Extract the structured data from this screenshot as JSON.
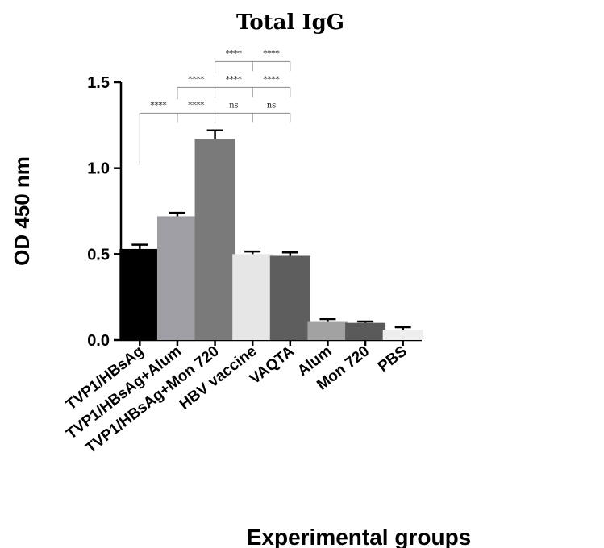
{
  "chart_data": {
    "type": "bar",
    "title": "Total IgG",
    "xlabel": "Experimental groups",
    "ylabel": "OD 450 nm",
    "ylim": [
      0,
      1.5
    ],
    "yticks": [
      "0.0",
      "0.5",
      "1.0",
      "1.5"
    ],
    "categories": [
      "TVP1/HBsAg",
      "TVP1/HBsAg+Alum",
      "TVP1/HBsAg+Mon 720",
      "HBV vaccine",
      "VAQTA",
      "Alum",
      "Mon 720",
      "PBS"
    ],
    "values": [
      0.53,
      0.72,
      1.17,
      0.5,
      0.49,
      0.11,
      0.1,
      0.06
    ],
    "errors": [
      0.025,
      0.02,
      0.05,
      0.015,
      0.02,
      0.012,
      0.008,
      0.015
    ],
    "bar_colors": [
      "#000000",
      "#9e9ea4",
      "#7a7a7a",
      "#e6e6e6",
      "#5e5e5e",
      "#a2a2a2",
      "#5a5a5a",
      "#eeeeee"
    ],
    "significance": [
      {
        "from": 0,
        "to": 4,
        "level": 1.32,
        "labels": [
          "****",
          "****",
          "ns",
          "ns"
        ]
      },
      {
        "from": 1,
        "to": 4,
        "level": 1.47,
        "labels": [
          "****",
          "****",
          "****"
        ]
      },
      {
        "from": 2,
        "to": 4,
        "level": 1.62,
        "labels": [
          "****",
          "****"
        ]
      }
    ]
  }
}
